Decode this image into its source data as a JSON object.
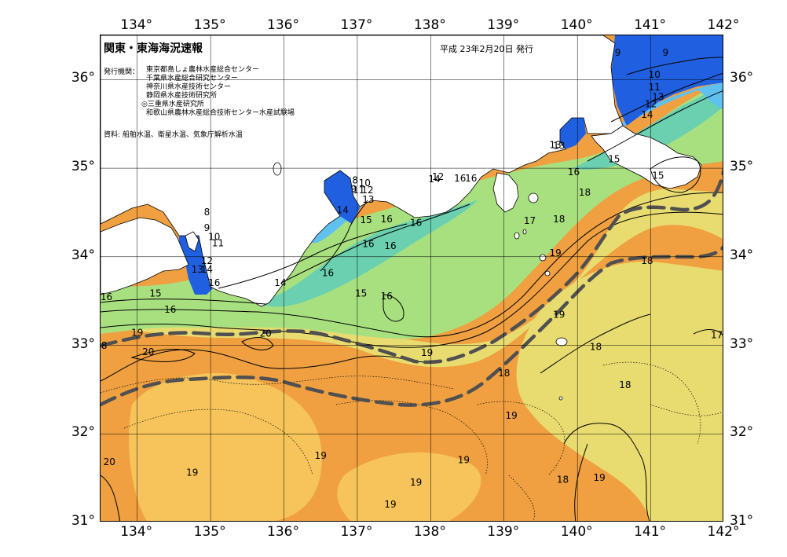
{
  "header": {
    "title": "関東・東海海況速報",
    "date": "平成 23年2月20日 発行"
  },
  "issuers": {
    "label": "発行機関：",
    "list": [
      "東京都島しょ農林水産総合センター",
      "千葉県水産総合研究センター",
      "神奈川県水産技術センター",
      "静岡県水産技術研究所",
      "◎三重県水産研究所",
      "和歌山県農林水産総合技術センター水産試験場"
    ]
  },
  "source": "資料: 船舶水温、衛星水温、気象庁解析水温",
  "axes": {
    "lon_labels": [
      "134°",
      "135°",
      "136°",
      "137°",
      "138°",
      "139°",
      "140°",
      "141°",
      "142°"
    ],
    "lat_labels": [
      "36°",
      "35°",
      "34°",
      "33°",
      "32°",
      "31°"
    ]
  },
  "map": {
    "lon_range": [
      133.5,
      142
    ],
    "lat_range": [
      31,
      36.5
    ],
    "colors": {
      "warm": "#f0a040",
      "warm_light": "#f6c45a",
      "mid": "#e8dc70",
      "cool": "#a8e080",
      "cold": "#6ad0b0",
      "colder": "#60c0f0",
      "coldest": "#2060e0",
      "land": "#ffffff",
      "kuroshio": "#505050"
    },
    "isotherm_labels": [
      {
        "t": "9",
        "lon": 140.55,
        "lat": 36.3
      },
      {
        "t": "9",
        "lon": 141.2,
        "lat": 36.3
      },
      {
        "t": "10",
        "lon": 141.05,
        "lat": 36.05
      },
      {
        "t": "11",
        "lon": 141.05,
        "lat": 35.91
      },
      {
        "t": "13",
        "lon": 141.1,
        "lat": 35.8
      },
      {
        "t": "12",
        "lon": 141.0,
        "lat": 35.72
      },
      {
        "t": "14",
        "lon": 140.95,
        "lat": 35.6
      },
      {
        "t": "13",
        "lon": 139.75,
        "lat": 35.25
      },
      {
        "t": "15",
        "lon": 140.5,
        "lat": 35.1
      },
      {
        "t": "16",
        "lon": 139.95,
        "lat": 34.95
      },
      {
        "t": "15",
        "lon": 141.1,
        "lat": 34.91
      },
      {
        "t": "18",
        "lon": 140.1,
        "lat": 34.72
      },
      {
        "t": "18",
        "lon": 139.75,
        "lat": 34.42
      },
      {
        "t": "17",
        "lon": 139.35,
        "lat": 34.4
      },
      {
        "t": "19",
        "lon": 139.7,
        "lat": 34.04
      },
      {
        "t": "18",
        "lon": 140.95,
        "lat": 33.95
      },
      {
        "t": "19",
        "lon": 139.75,
        "lat": 33.34
      },
      {
        "t": "17",
        "lon": 141.9,
        "lat": 33.11
      },
      {
        "t": "18",
        "lon": 140.25,
        "lat": 32.98
      },
      {
        "t": "18",
        "lon": 139.0,
        "lat": 32.68
      },
      {
        "t": "18",
        "lon": 140.65,
        "lat": 32.55
      },
      {
        "t": "19",
        "lon": 139.1,
        "lat": 32.2
      },
      {
        "t": "19",
        "lon": 140.3,
        "lat": 31.5
      },
      {
        "t": "18",
        "lon": 139.8,
        "lat": 31.48
      },
      {
        "t": "19",
        "lon": 138.45,
        "lat": 31.7
      },
      {
        "t": "19",
        "lon": 137.8,
        "lat": 31.45
      },
      {
        "t": "19",
        "lon": 137.45,
        "lat": 31.2
      },
      {
        "t": "19",
        "lon": 136.5,
        "lat": 31.75
      },
      {
        "t": "19",
        "lon": 134.75,
        "lat": 31.56
      },
      {
        "t": "20",
        "lon": 133.62,
        "lat": 31.68
      },
      {
        "t": "20",
        "lon": 134.15,
        "lat": 32.92
      },
      {
        "t": "20",
        "lon": 135.75,
        "lat": 33.13
      },
      {
        "t": "19",
        "lon": 137.95,
        "lat": 32.91
      },
      {
        "t": "19",
        "lon": 134.0,
        "lat": 33.14
      },
      {
        "t": "8",
        "lon": 133.55,
        "lat": 32.99
      },
      {
        "t": "16",
        "lon": 133.58,
        "lat": 33.54
      },
      {
        "t": "15",
        "lon": 134.25,
        "lat": 33.58
      },
      {
        "t": "16",
        "lon": 134.45,
        "lat": 33.4
      },
      {
        "t": "16",
        "lon": 135.05,
        "lat": 33.7
      },
      {
        "t": "14",
        "lon": 135.95,
        "lat": 33.7
      },
      {
        "t": "16",
        "lon": 136.6,
        "lat": 33.81
      },
      {
        "t": "15",
        "lon": 137.05,
        "lat": 33.58
      },
      {
        "t": "16",
        "lon": 137.4,
        "lat": 33.55
      },
      {
        "t": "16",
        "lon": 137.45,
        "lat": 34.12
      },
      {
        "t": "16",
        "lon": 137.15,
        "lat": 34.14
      },
      {
        "t": "15",
        "lon": 137.12,
        "lat": 34.41
      },
      {
        "t": "16",
        "lon": 137.4,
        "lat": 34.42
      },
      {
        "t": "16",
        "lon": 137.8,
        "lat": 34.38
      },
      {
        "t": "14",
        "lon": 136.8,
        "lat": 34.52
      },
      {
        "t": "13",
        "lon": 137.15,
        "lat": 34.64
      },
      {
        "t": "11",
        "lon": 137.02,
        "lat": 34.75
      },
      {
        "t": "12",
        "lon": 137.14,
        "lat": 34.75
      },
      {
        "t": "9",
        "lon": 136.95,
        "lat": 34.76
      },
      {
        "t": "10",
        "lon": 137.1,
        "lat": 34.83
      },
      {
        "t": "8",
        "lon": 136.97,
        "lat": 34.86
      },
      {
        "t": "14",
        "lon": 138.05,
        "lat": 34.87
      },
      {
        "t": "12",
        "lon": 138.1,
        "lat": 34.9
      },
      {
        "t": "16",
        "lon": 138.4,
        "lat": 34.88
      },
      {
        "t": "16",
        "lon": 138.55,
        "lat": 34.88
      },
      {
        "t": "13",
        "lon": 139.7,
        "lat": 35.26
      },
      {
        "t": "8",
        "lon": 134.95,
        "lat": 34.5
      },
      {
        "t": "9",
        "lon": 134.95,
        "lat": 34.32
      },
      {
        "t": "10",
        "lon": 135.05,
        "lat": 34.22
      },
      {
        "t": "11",
        "lon": 135.1,
        "lat": 34.15
      },
      {
        "t": "12",
        "lon": 134.95,
        "lat": 33.95
      },
      {
        "t": "13",
        "lon": 134.82,
        "lat": 33.85
      },
      {
        "t": "14",
        "lon": 134.95,
        "lat": 33.85
      }
    ]
  }
}
